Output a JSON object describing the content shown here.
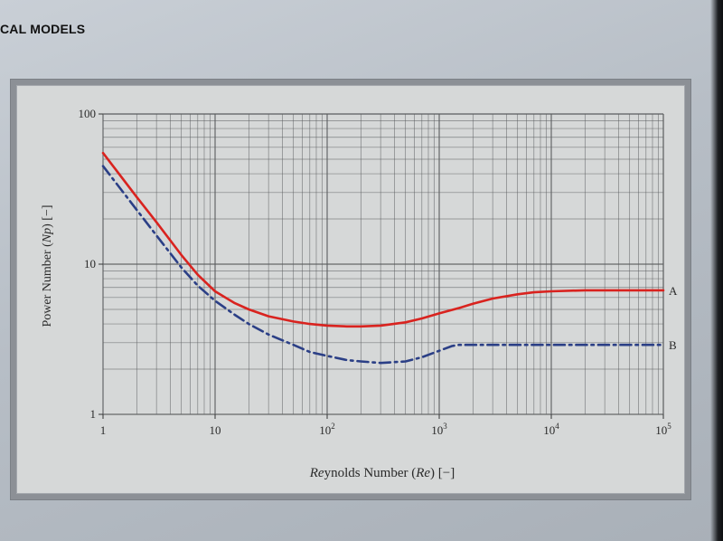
{
  "page": {
    "running_header": "CAL MODELS"
  },
  "colors": {
    "curve_a": "#d9231f",
    "curve_b": "#2b3f86",
    "grid": "#5a5c5e",
    "panel_bg": "#d6d8d8"
  },
  "chart_data": {
    "type": "line",
    "xscale": "log",
    "yscale": "log",
    "xlabel": "Reynolds Number (Re) [−]",
    "ylabel": "Power Number (Np) [−]",
    "xlim": [
      1,
      100000
    ],
    "ylim": [
      1,
      100
    ],
    "grid": true,
    "x_ticks": [
      {
        "value": 1,
        "base": "1",
        "exp": ""
      },
      {
        "value": 10,
        "base": "10",
        "exp": ""
      },
      {
        "value": 100,
        "base": "10",
        "exp": "2"
      },
      {
        "value": 1000,
        "base": "10",
        "exp": "3"
      },
      {
        "value": 10000,
        "base": "10",
        "exp": "4"
      },
      {
        "value": 100000,
        "base": "10",
        "exp": "5"
      }
    ],
    "y_ticks": [
      {
        "value": 1,
        "label": "1"
      },
      {
        "value": 10,
        "label": "10"
      },
      {
        "value": 100,
        "label": "100"
      }
    ],
    "series": [
      {
        "name": "A",
        "style": "solid",
        "points": [
          [
            1,
            55
          ],
          [
            2,
            28
          ],
          [
            3,
            19
          ],
          [
            5,
            11.5
          ],
          [
            7,
            8.5
          ],
          [
            10,
            6.6
          ],
          [
            15,
            5.5
          ],
          [
            20,
            5.0
          ],
          [
            30,
            4.5
          ],
          [
            50,
            4.15
          ],
          [
            70,
            4.0
          ],
          [
            100,
            3.9
          ],
          [
            150,
            3.85
          ],
          [
            200,
            3.85
          ],
          [
            300,
            3.9
          ],
          [
            500,
            4.1
          ],
          [
            700,
            4.35
          ],
          [
            1000,
            4.7
          ],
          [
            1500,
            5.1
          ],
          [
            2000,
            5.45
          ],
          [
            3000,
            5.9
          ],
          [
            5000,
            6.3
          ],
          [
            7000,
            6.5
          ],
          [
            10000,
            6.6
          ],
          [
            20000,
            6.7
          ],
          [
            50000,
            6.7
          ],
          [
            100000,
            6.7
          ]
        ]
      },
      {
        "name": "B",
        "style": "dash-dot",
        "points": [
          [
            1,
            45
          ],
          [
            2,
            23
          ],
          [
            3,
            15.5
          ],
          [
            5,
            9.5
          ],
          [
            7,
            7.2
          ],
          [
            10,
            5.7
          ],
          [
            15,
            4.6
          ],
          [
            20,
            4.0
          ],
          [
            30,
            3.4
          ],
          [
            50,
            2.9
          ],
          [
            70,
            2.6
          ],
          [
            100,
            2.45
          ],
          [
            150,
            2.3
          ],
          [
            200,
            2.25
          ],
          [
            300,
            2.2
          ],
          [
            500,
            2.25
          ],
          [
            700,
            2.4
          ],
          [
            1000,
            2.65
          ],
          [
            1300,
            2.85
          ],
          [
            1500,
            2.9
          ],
          [
            2000,
            2.9
          ],
          [
            5000,
            2.9
          ],
          [
            10000,
            2.9
          ],
          [
            50000,
            2.9
          ],
          [
            100000,
            2.9
          ]
        ]
      }
    ]
  }
}
